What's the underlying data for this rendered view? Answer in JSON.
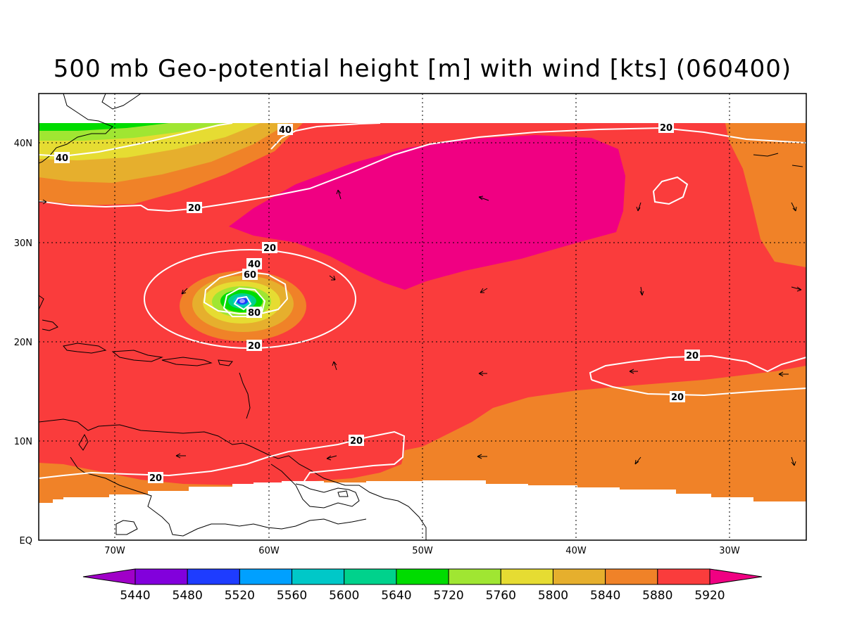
{
  "title": "500 mb Geo-potential height [m] with wind [kts] (060400)",
  "map": {
    "lat_labels": [
      "40N",
      "30N",
      "20N",
      "10N",
      "EQ"
    ],
    "lon_labels": [
      "70W",
      "60W",
      "50W",
      "40W",
      "30W"
    ],
    "contour_labels": [
      "40",
      "40",
      "20",
      "20",
      "20",
      "40",
      "60",
      "80",
      "20",
      "20",
      "20",
      "20",
      "20"
    ]
  },
  "colorbar": {
    "labels": [
      "5440",
      "5480",
      "5520",
      "5560",
      "5600",
      "5640",
      "5720",
      "5760",
      "5800",
      "5840",
      "5880",
      "5920"
    ],
    "colors": [
      "#a000c8",
      "#8200dc",
      "#1e3cff",
      "#00a0ff",
      "#00c8c8",
      "#00d28c",
      "#00dc00",
      "#a0e632",
      "#e6dc32",
      "#e6af2d",
      "#f08228",
      "#fa3c3c",
      "#f00082"
    ]
  },
  "chart_data": {
    "type": "heatmap",
    "title": "500 mb Geo-potential height [m] with wind [kts] (060400)",
    "variable": "500 mb geopotential height (m) with wind speed contours (kts)",
    "extent": {
      "lon": [
        -75,
        -25
      ],
      "lat": [
        0,
        45
      ]
    },
    "lat_ticks": [
      "40N",
      "30N",
      "20N",
      "10N",
      "EQ"
    ],
    "lon_ticks": [
      "70W",
      "60W",
      "50W",
      "40W",
      "30W"
    ],
    "levels": [
      5440,
      5480,
      5520,
      5560,
      5600,
      5640,
      5720,
      5760,
      5800,
      5840,
      5880,
      5920
    ],
    "wind_contour_levels": [
      20,
      40,
      60,
      80
    ],
    "features": [
      {
        "name": "storm center",
        "lat": 24,
        "lon": -62
      },
      {
        "name": "subtropical high > 5920 m",
        "lat": 33,
        "lon": -45
      }
    ]
  }
}
